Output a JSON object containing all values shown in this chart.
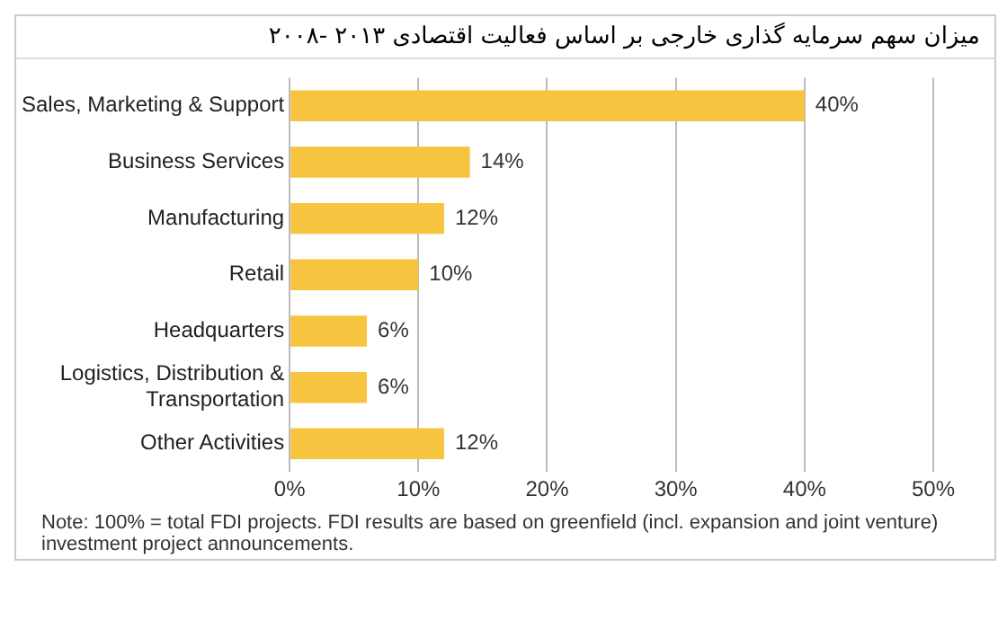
{
  "chart_data": {
    "type": "bar",
    "orientation": "horizontal",
    "title": "میزان سهم سرمایه گذاری خارجی بر اساس فعالیت اقتصادی ۲۰۱۳ -۲۰۰۸",
    "categories": [
      "Sales, Marketing & Support",
      "Business Services",
      "Manufacturing",
      "Retail",
      "Headquarters",
      "Logistics, Distribution & Transportation",
      "Other Activities"
    ],
    "values": [
      40,
      14,
      12,
      10,
      6,
      6,
      12
    ],
    "value_labels": [
      "40%",
      "14%",
      "12%",
      "10%",
      "6%",
      "6%",
      "12%"
    ],
    "color": "#f7c440",
    "xlim": [
      0,
      50
    ],
    "xticks": [
      {
        "value": 0,
        "label": "0%"
      },
      {
        "value": 10,
        "label": "10%"
      },
      {
        "value": 20,
        "label": "20%"
      },
      {
        "value": 30,
        "label": "30%"
      },
      {
        "value": 40,
        "label": "40%"
      },
      {
        "value": 50,
        "label": "50%"
      }
    ],
    "grid": "x",
    "annotations": [
      "Note: 100% = total FDI projects. FDI results are based on greenfield (incl. expansion and joint venture) investment project announcements."
    ]
  }
}
